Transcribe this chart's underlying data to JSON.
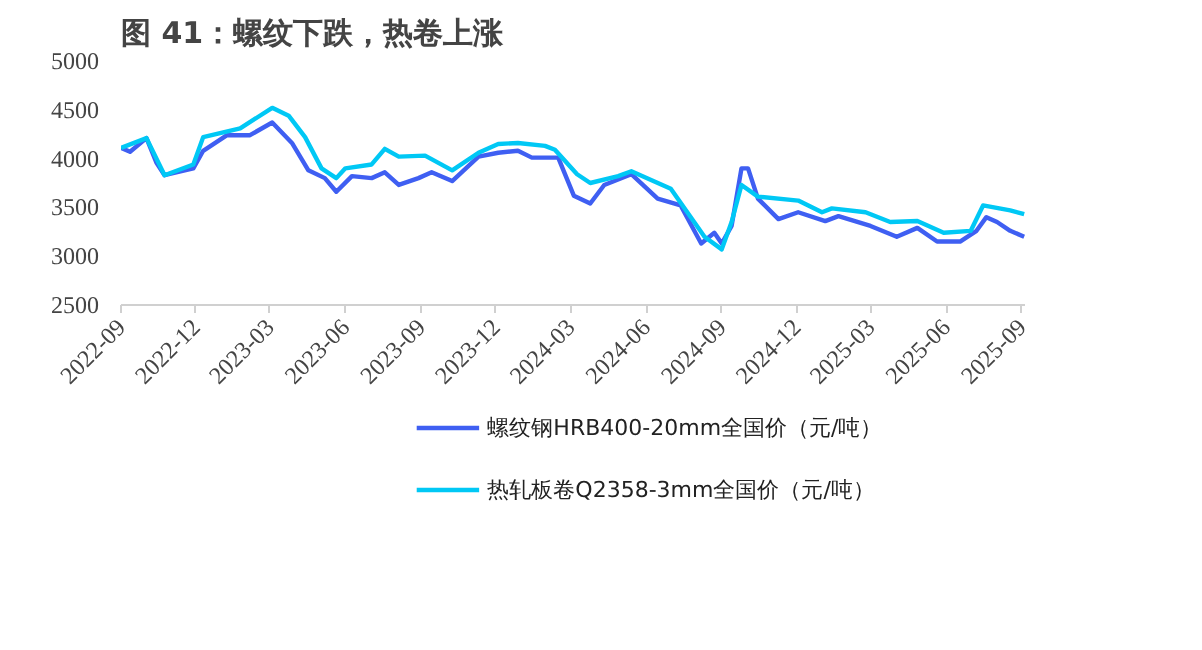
{
  "chart_data": {
    "type": "line",
    "title": "图 41：螺纹下跌，热卷上涨",
    "xlim": [
      "2022-09-01",
      "2025-09-05"
    ],
    "xticks": [
      {
        "value": "2022-09-01",
        "label": "2022-09"
      },
      {
        "value": "2022-12-01",
        "label": "2022-12"
      },
      {
        "value": "2023-03-01",
        "label": "2023-03"
      },
      {
        "value": "2023-06-01",
        "label": "2023-06"
      },
      {
        "value": "2023-09-01",
        "label": "2023-09"
      },
      {
        "value": "2023-12-01",
        "label": "2023-12"
      },
      {
        "value": "2024-03-01",
        "label": "2024-03"
      },
      {
        "value": "2024-06-01",
        "label": "2024-06"
      },
      {
        "value": "2024-09-01",
        "label": "2024-09"
      },
      {
        "value": "2024-12-01",
        "label": "2024-12"
      },
      {
        "value": "2025-03-01",
        "label": "2025-03"
      },
      {
        "value": "2025-06-01",
        "label": "2025-06"
      },
      {
        "value": "2025-09-01",
        "label": "2025-09"
      }
    ],
    "ylim": [
      2500,
      5000
    ],
    "yticks": [
      2500,
      3000,
      3500,
      4000,
      4500,
      5000
    ],
    "grid": false,
    "legend": "bottom",
    "marker": "none",
    "line_style": "solid",
    "series": [
      {
        "name": "螺纹钢HRB400-20mm全国价（元/吨）",
        "color": "#3f5ff2",
        "x": [
          "2022-09-01",
          "2022-09-12",
          "2022-10-02",
          "2022-10-14",
          "2022-10-24",
          "2022-11-28",
          "2022-12-10",
          "2023-01-08",
          "2023-02-05",
          "2023-03-04",
          "2023-03-28",
          "2023-04-17",
          "2023-05-07",
          "2023-05-21",
          "2023-06-09",
          "2023-07-03",
          "2023-07-19",
          "2023-08-05",
          "2023-08-29",
          "2023-09-14",
          "2023-10-09",
          "2023-11-10",
          "2023-12-04",
          "2023-12-28",
          "2024-01-14",
          "2024-02-15",
          "2024-03-05",
          "2024-03-25",
          "2024-04-11",
          "2024-05-14",
          "2024-06-15",
          "2024-07-13",
          "2024-08-07",
          "2024-08-23",
          "2024-09-01",
          "2024-09-13",
          "2024-09-25",
          "2024-10-03",
          "2024-10-15",
          "2024-11-09",
          "2024-12-03",
          "2025-01-05",
          "2025-01-21",
          "2025-03-01",
          "2025-04-02",
          "2025-04-27",
          "2025-05-21",
          "2025-06-18",
          "2025-07-08",
          "2025-07-20",
          "2025-08-02",
          "2025-08-18",
          "2025-09-04"
        ],
        "values": [
          4110,
          4070,
          4210,
          3960,
          3830,
          3900,
          4080,
          4240,
          4240,
          4370,
          4160,
          3880,
          3800,
          3660,
          3820,
          3800,
          3860,
          3730,
          3800,
          3860,
          3770,
          4020,
          4060,
          4080,
          4010,
          4010,
          3620,
          3540,
          3730,
          3840,
          3590,
          3520,
          3130,
          3240,
          3130,
          3310,
          3900,
          3900,
          3590,
          3380,
          3450,
          3360,
          3410,
          3310,
          3200,
          3290,
          3150,
          3150,
          3260,
          3400,
          3350,
          3260,
          3200
        ]
      },
      {
        "name": "热轧板卷Q2358-3mm全国价（元/吨）",
        "color": "#00c8f5",
        "x": [
          "2022-09-01",
          "2022-10-02",
          "2022-10-24",
          "2022-11-28",
          "2022-12-10",
          "2023-01-24",
          "2023-03-04",
          "2023-03-24",
          "2023-04-13",
          "2023-05-03",
          "2023-05-21",
          "2023-06-01",
          "2023-07-03",
          "2023-07-19",
          "2023-08-05",
          "2023-09-06",
          "2023-10-09",
          "2023-11-10",
          "2023-12-04",
          "2023-12-28",
          "2024-01-30",
          "2024-02-11",
          "2024-03-09",
          "2024-03-25",
          "2024-04-28",
          "2024-05-14",
          "2024-07-01",
          "2024-08-11",
          "2024-09-01",
          "2024-09-13",
          "2024-09-25",
          "2024-10-15",
          "2024-12-03",
          "2025-01-01",
          "2025-01-13",
          "2025-02-23",
          "2025-03-25",
          "2025-04-27",
          "2025-05-29",
          "2025-07-01",
          "2025-07-16",
          "2025-08-18",
          "2025-09-04"
        ],
        "values": [
          4110,
          4210,
          3830,
          3940,
          4220,
          4310,
          4520,
          4440,
          4220,
          3900,
          3800,
          3900,
          3940,
          4100,
          4020,
          4030,
          3880,
          4060,
          4150,
          4160,
          4130,
          4090,
          3840,
          3750,
          3820,
          3870,
          3690,
          3200,
          3070,
          3350,
          3730,
          3610,
          3570,
          3450,
          3490,
          3450,
          3350,
          3360,
          3240,
          3260,
          3520,
          3470,
          3430
        ]
      }
    ]
  }
}
